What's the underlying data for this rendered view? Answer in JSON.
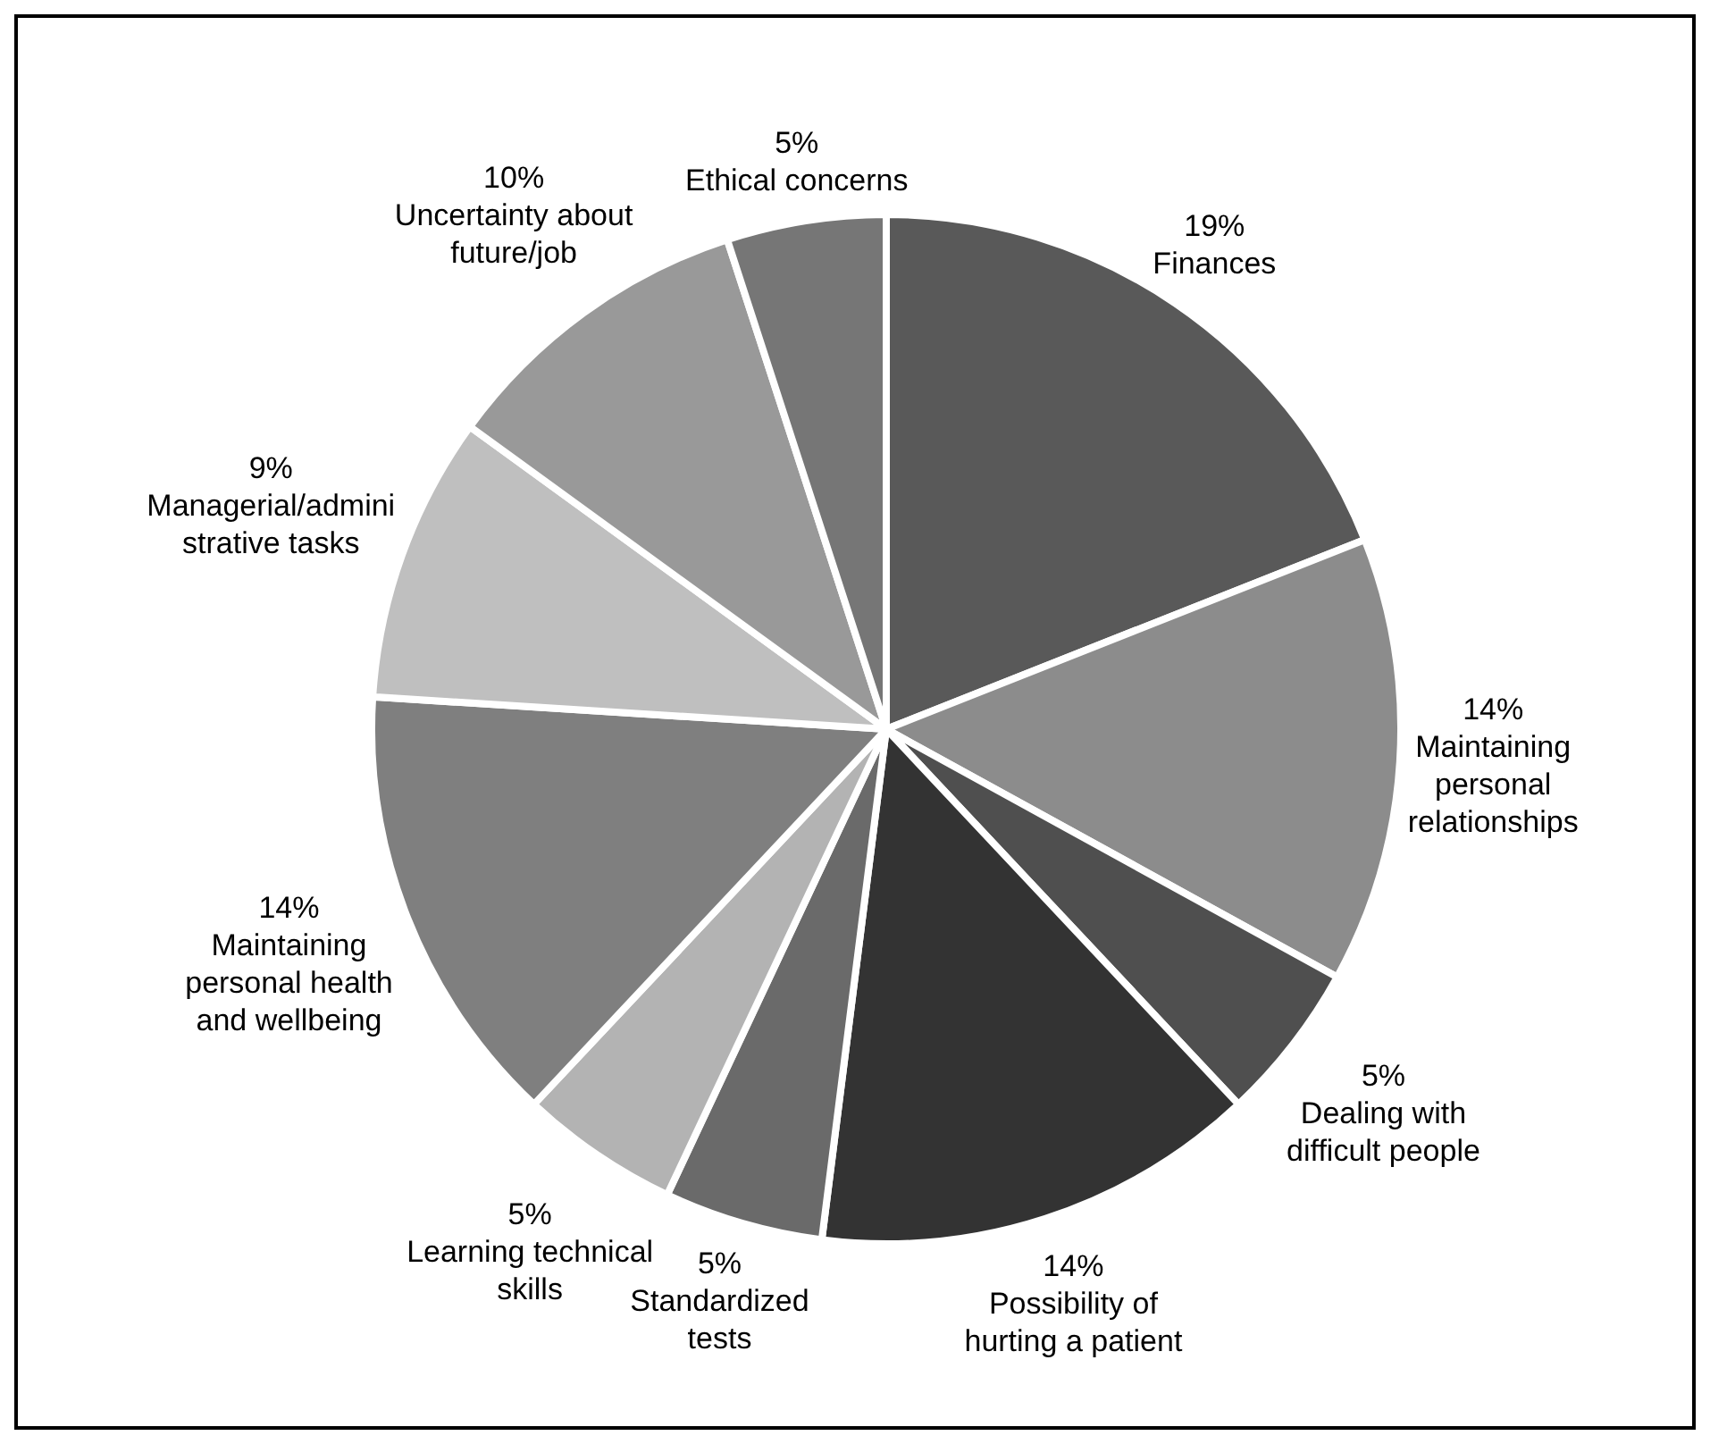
{
  "chart_data": {
    "type": "pie",
    "categories": [
      "Finances",
      "Maintaining personal relationships",
      "Dealing with difficult people",
      "Possibility of hurting a patient",
      "Standardized tests",
      "Learning technical skills",
      "Maintaining personal health and wellbeing",
      "Managerial/administrative tasks",
      "Uncertainty about future/job",
      "Ethical concerns"
    ],
    "values": [
      19,
      14,
      5,
      14,
      5,
      5,
      14,
      9,
      10,
      5
    ],
    "value_labels": [
      "19%",
      "14%",
      "5%",
      "14%",
      "5%",
      "5%",
      "14%",
      "9%",
      "10%",
      "5%"
    ],
    "colors": [
      "#595959",
      "#8c8c8c",
      "#4f4f4f",
      "#333333",
      "#6a6a6a",
      "#b3b3b3",
      "#7f7f7f",
      "#bfbfbf",
      "#999999",
      "#767676"
    ]
  }
}
